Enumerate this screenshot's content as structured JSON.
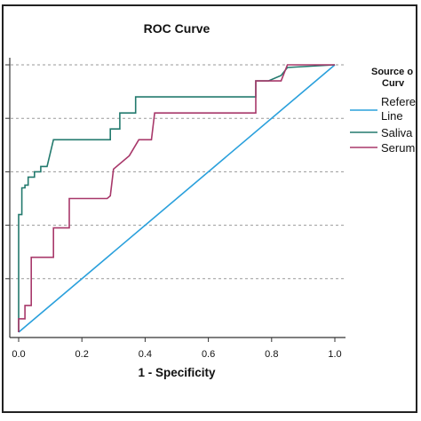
{
  "chart_data": {
    "type": "line",
    "title": "ROC Curve",
    "xlabel": "1 - Specificity",
    "ylabel": "",
    "xlim": [
      0,
      1
    ],
    "ylim": [
      0,
      1
    ],
    "x_ticks": [
      "0.0",
      "0.2",
      "0.4",
      "0.6",
      "0.8",
      "1.0"
    ],
    "grid": "horizontal dashed",
    "legend": {
      "title_lines": [
        "Source o",
        "Curv"
      ],
      "placement": "right",
      "entries": [
        {
          "label_lines": [
            "Refere",
            "Line"
          ],
          "color": "#2aa0dc"
        },
        {
          "label_lines": [
            "Saliva"
          ],
          "color": "#237a6e"
        },
        {
          "label_lines": [
            "Serum"
          ],
          "color": "#a8386a"
        }
      ]
    },
    "series": [
      {
        "name": "Reference Line",
        "color": "#2aa0dc",
        "points": [
          [
            0,
            0
          ],
          [
            1,
            1
          ]
        ]
      },
      {
        "name": "Saliva",
        "color": "#237a6e",
        "points": [
          [
            0,
            0
          ],
          [
            0,
            0.44
          ],
          [
            0.01,
            0.44
          ],
          [
            0.01,
            0.54
          ],
          [
            0.02,
            0.54
          ],
          [
            0.02,
            0.55
          ],
          [
            0.03,
            0.55
          ],
          [
            0.03,
            0.58
          ],
          [
            0.05,
            0.58
          ],
          [
            0.05,
            0.6
          ],
          [
            0.07,
            0.6
          ],
          [
            0.07,
            0.62
          ],
          [
            0.09,
            0.62
          ],
          [
            0.11,
            0.72
          ],
          [
            0.29,
            0.72
          ],
          [
            0.29,
            0.76
          ],
          [
            0.32,
            0.76
          ],
          [
            0.32,
            0.82
          ],
          [
            0.37,
            0.82
          ],
          [
            0.37,
            0.88
          ],
          [
            0.75,
            0.88
          ],
          [
            0.75,
            0.94
          ],
          [
            0.79,
            0.94
          ],
          [
            0.83,
            0.96
          ],
          [
            0.85,
            0.99
          ],
          [
            1,
            1
          ]
        ]
      },
      {
        "name": "Serum",
        "color": "#a8386a",
        "points": [
          [
            0,
            0
          ],
          [
            0,
            0.05
          ],
          [
            0.02,
            0.05
          ],
          [
            0.02,
            0.1
          ],
          [
            0.04,
            0.1
          ],
          [
            0.04,
            0.28
          ],
          [
            0.11,
            0.28
          ],
          [
            0.11,
            0.39
          ],
          [
            0.16,
            0.39
          ],
          [
            0.16,
            0.5
          ],
          [
            0.28,
            0.5
          ],
          [
            0.29,
            0.51
          ],
          [
            0.3,
            0.61
          ],
          [
            0.35,
            0.66
          ],
          [
            0.38,
            0.72
          ],
          [
            0.42,
            0.72
          ],
          [
            0.43,
            0.82
          ],
          [
            0.75,
            0.82
          ],
          [
            0.75,
            0.94
          ],
          [
            0.83,
            0.94
          ],
          [
            0.85,
            1.0
          ],
          [
            1,
            1
          ]
        ]
      }
    ]
  }
}
